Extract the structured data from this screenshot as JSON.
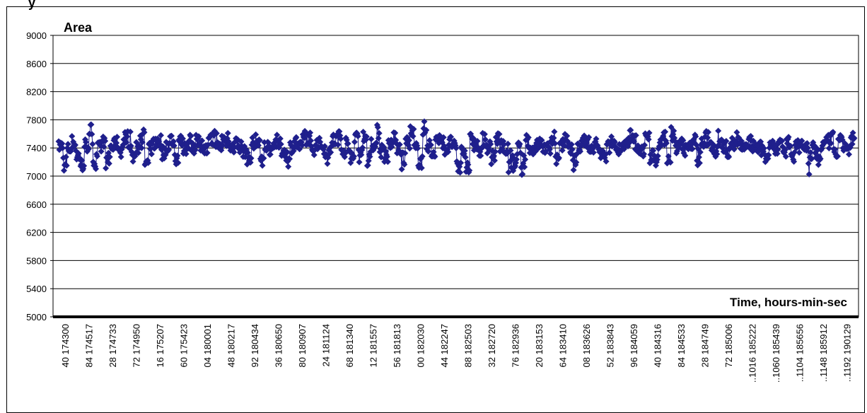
{
  "header_fragment": "y",
  "chart_data": {
    "type": "line",
    "title": "Area",
    "xlabel": "Time, hours-min-sec",
    "ylabel": "",
    "ylim": [
      5000,
      9000
    ],
    "yticks": [
      5000,
      5400,
      5800,
      6200,
      6600,
      7000,
      7400,
      7800,
      8200,
      8600,
      9000
    ],
    "grid": true,
    "marker": "diamond",
    "colors": {
      "series": "#1f1f8c",
      "grid": "#000000"
    },
    "x_tick_labels": [
      "40 174300",
      "84 174517",
      "28 174733",
      "72 174950",
      "16 175207",
      "60 175423",
      "04 180001",
      "48 180217",
      "92 180434",
      "36 180650",
      "80 180907",
      "24 181124",
      "68 181340",
      "12 181557",
      "56 181813",
      "00 182030",
      "44 182247",
      "88 182503",
      "32 182720",
      "76 182936",
      "20 183153",
      "64 183410",
      "08 183626",
      "52 183843",
      "96 184059",
      "40 184316",
      "84 184533",
      "28 184749",
      "72 185006",
      "..1016 185222",
      "..1060 185439",
      "..1104 185656",
      "..1148 185912",
      "..1192 190129"
    ],
    "series": [
      {
        "approx_point_count": 1200,
        "mean": 7400,
        "typical_range": [
          7200,
          7600
        ],
        "extremes_min": 7030,
        "extremes_max": 7710,
        "values": [
          7450,
          7100,
          7380,
          7520,
          7250,
          7090,
          7460,
          7680,
          7130,
          7400,
          7550,
          7180,
          7420,
          7490,
          7350,
          7570,
          7600,
          7220,
          7410,
          7650,
          7100,
          7380,
          7480,
          7530,
          7300,
          7450,
          7560,
          7240,
          7520,
          7400,
          7600,
          7380,
          7690,
          7450,
          7350,
          7520,
          7610,
          7420,
          7550,
          7600,
          7380,
          7500,
          7420,
          7320,
          7210,
          7480,
          7550,
          7120,
          7450,
          7380,
          7500,
          7470,
          7350,
          7200,
          7420,
          7510,
          7400,
          7630,
          7550,
          7380,
          7520,
          7480,
          7250,
          7400,
          7560,
          7610,
          7300,
          7490,
          7200,
          7680,
          7250,
          7660,
          7180,
          7450,
          7700,
          7350,
          7200,
          7480,
          7600,
          7330,
          7150,
          7520,
          7640,
          7380,
          7140,
          7700,
          7450,
          7250,
          7600,
          7520,
          7380,
          7500,
          7420,
          7080,
          7350,
          7070,
          7580,
          7450,
          7300,
          7550,
          7420,
          7180,
          7600,
          7450,
          7350,
          7120,
          7050,
          7400,
          7030,
          7580,
          7350,
          7450,
          7520,
          7400,
          7380,
          7650,
          7200,
          7500,
          7550,
          7350,
          7100,
          7400,
          7550,
          7480,
          7350,
          7500,
          7280,
          7180,
          7420,
          7500,
          7380,
          7460,
          7450,
          7600,
          7520,
          7380,
          7350,
          7600,
          7250,
          7150,
          7540,
          7600,
          7180,
          7630,
          7400,
          7470,
          7350,
          7480,
          7520,
          7200,
          7500,
          7600,
          7450,
          7350,
          7650,
          7420,
          7300,
          7550,
          7620,
          7450,
          7380,
          7500,
          7430,
          7400,
          7350,
          7200,
          7500,
          7380,
          7560,
          7300,
          7550,
          7180,
          7450,
          7520,
          7400,
          7080,
          7380,
          7200,
          7450,
          7500,
          7600,
          7300,
          7520,
          7450,
          7380,
          7550
        ]
      }
    ]
  }
}
